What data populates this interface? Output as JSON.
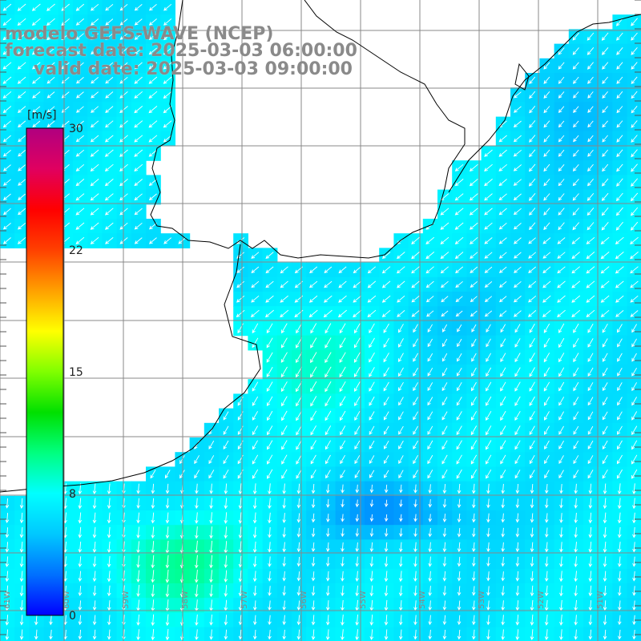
{
  "title": {
    "line1": "modelo GEFS-WAVE (NCEP)",
    "line2": "forecast date: 2025-03-03 06:00:00",
    "line3": "valid date: 2025-03-03 09:00:00"
  },
  "colorbar": {
    "unit": "[m/s]",
    "ticks": [
      "30",
      "22",
      "15",
      "8",
      "0"
    ],
    "min": 0,
    "max": 30,
    "colors": [
      "#0000ff",
      "#0070ff",
      "#00c8ff",
      "#00ffff",
      "#00ff80",
      "#00e000",
      "#80ff00",
      "#ffff00",
      "#ffa000",
      "#ff4000",
      "#ff0000",
      "#e00060",
      "#b00080"
    ]
  },
  "longitude_labels": [
    "61W",
    "60W",
    "59W",
    "58W",
    "57W",
    "56W",
    "55W",
    "54W",
    "53W",
    "52W",
    "51W"
  ],
  "colors": {
    "land": "#ffffff",
    "grid": "#888888",
    "coast": "#000000",
    "arrow": "#ffffff",
    "title_text": "#8a8a8a"
  }
}
